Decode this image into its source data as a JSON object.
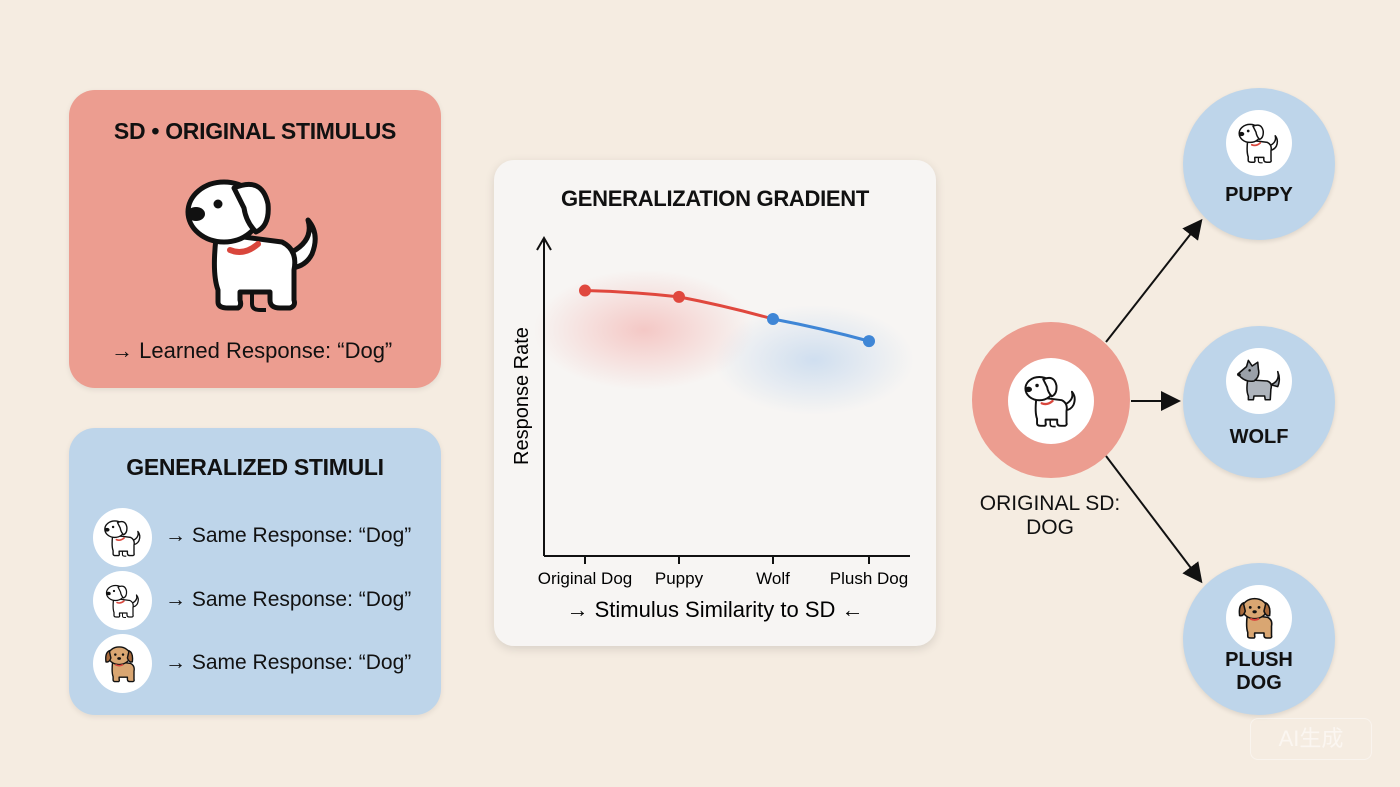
{
  "original_card": {
    "title": "SD • ORIGINAL STIMULUS",
    "response": "→ Learned Response: “Dog”",
    "icon": "dog-icon"
  },
  "generalized_card": {
    "title": "GENERALIZED STIMULI",
    "items": [
      {
        "icon": "dog-icon",
        "text": "→ Same Response: “Dog”"
      },
      {
        "icon": "puppy-icon",
        "text": "→ Same Response: “Dog”"
      },
      {
        "icon": "plush-dog-icon",
        "text": "→ Same Response: “Dog”"
      }
    ]
  },
  "chart_data": {
    "type": "line",
    "title": "GENERALIZATION GRADIENT",
    "ylabel": "Response Rate",
    "xlabel": "→ Stimulus Similarity to SD ←",
    "categories": [
      "Original Dog",
      "Puppy",
      "Wolf",
      "Plush Dog"
    ],
    "values": [
      0.84,
      0.82,
      0.75,
      0.68
    ],
    "ylim": [
      0,
      1
    ],
    "point_colors": [
      "#e0483e",
      "#e0483e",
      "#3f86d6",
      "#3f86d6"
    ],
    "grid": false
  },
  "diagram": {
    "center": {
      "label": "ORIGINAL SD:\nDOG",
      "icon": "dog-icon"
    },
    "nodes": [
      {
        "label": "PUPPY",
        "icon": "puppy-icon"
      },
      {
        "label": "WOLF",
        "icon": "wolf-icon"
      },
      {
        "label": "PLUSH\nDOG",
        "icon": "plush-dog-icon"
      }
    ]
  },
  "colors": {
    "background": "#f5ece1",
    "salmon": "#ec9d90",
    "light_blue": "#bed5ea",
    "red_line": "#e0483e",
    "blue_line": "#3f86d6"
  },
  "watermark": "AI生成"
}
